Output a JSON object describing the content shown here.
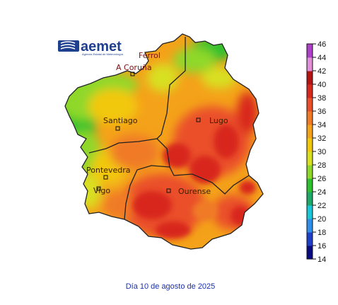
{
  "logo": {
    "brand": "aemet",
    "subtitle": "Agencia Estatal de Meteorología"
  },
  "cities": [
    {
      "name": "Ferrol",
      "marker": false
    },
    {
      "name": "A Coruña",
      "marker": true
    },
    {
      "name": "Santiago",
      "marker": true
    },
    {
      "name": "Lugo",
      "marker": true
    },
    {
      "name": "Pontevedra",
      "marker": true
    },
    {
      "name": "Vigo",
      "marker": true
    },
    {
      "name": "Ourense",
      "marker": true
    }
  ],
  "legend": {
    "ticks": [
      "46",
      "44",
      "42",
      "40",
      "38",
      "36",
      "34",
      "32",
      "30",
      "28",
      "26",
      "24",
      "22",
      "20",
      "18",
      "16",
      "14"
    ],
    "colors_low_to_high": [
      "#0a0a80",
      "#1f3fc8",
      "#2f8fe8",
      "#19c8d8",
      "#1ea86a",
      "#2fc02f",
      "#8fd82a",
      "#d8e020",
      "#f2c80c",
      "#f4a21a",
      "#f07a28",
      "#ea4f2a",
      "#d8281e",
      "#b51414",
      "#e08fd8",
      "#b040c8"
    ]
  },
  "caption": "Día 10 de agosto de 2025"
}
